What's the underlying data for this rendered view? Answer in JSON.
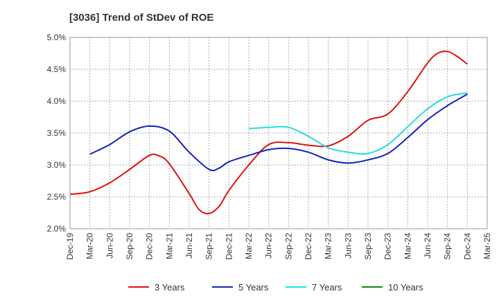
{
  "chart_data": {
    "type": "line",
    "title": "[3036]  Trend of StDev of ROE",
    "xlabel": "",
    "ylabel": "",
    "ylim": [
      2.0,
      5.0
    ],
    "y_ticks": [
      "2.0%",
      "2.5%",
      "3.0%",
      "3.5%",
      "4.0%",
      "4.5%",
      "5.0%"
    ],
    "y_tick_values": [
      2.0,
      2.5,
      3.0,
      3.5,
      4.0,
      4.5,
      5.0
    ],
    "x_ticks": [
      "Dec-19",
      "Mar-20",
      "Jun-20",
      "Sep-20",
      "Dec-20",
      "Mar-21",
      "Jun-21",
      "Sep-21",
      "Dec-21",
      "Mar-22",
      "Jun-22",
      "Sep-22",
      "Dec-22",
      "Mar-23",
      "Jun-23",
      "Sep-23",
      "Dec-23",
      "Mar-24",
      "Jun-24",
      "Sep-24",
      "Dec-24",
      "Mar-25"
    ],
    "grid": true,
    "legend_position": "bottom",
    "series": [
      {
        "name": "3 Years",
        "color": "#dd1111",
        "points": [
          [
            0,
            2.54
          ],
          [
            1,
            2.58
          ],
          [
            2,
            2.72
          ],
          [
            3,
            2.93
          ],
          [
            4,
            3.15
          ],
          [
            4.5,
            3.14
          ],
          [
            5,
            3.02
          ],
          [
            6,
            2.55
          ],
          [
            6.5,
            2.3
          ],
          [
            7,
            2.24
          ],
          [
            7.5,
            2.35
          ],
          [
            8,
            2.6
          ],
          [
            9,
            3.0
          ],
          [
            10,
            3.32
          ],
          [
            11,
            3.35
          ],
          [
            12,
            3.31
          ],
          [
            13,
            3.3
          ],
          [
            14,
            3.45
          ],
          [
            15,
            3.7
          ],
          [
            16,
            3.8
          ],
          [
            17,
            4.15
          ],
          [
            18,
            4.6
          ],
          [
            18.5,
            4.75
          ],
          [
            19,
            4.78
          ],
          [
            19.5,
            4.7
          ],
          [
            20,
            4.58
          ]
        ]
      },
      {
        "name": "5 Years",
        "color": "#1122bb",
        "points": [
          [
            1,
            3.17
          ],
          [
            2,
            3.32
          ],
          [
            3,
            3.52
          ],
          [
            4,
            3.61
          ],
          [
            5,
            3.53
          ],
          [
            6,
            3.2
          ],
          [
            7,
            2.93
          ],
          [
            7.5,
            2.95
          ],
          [
            8,
            3.05
          ],
          [
            9,
            3.15
          ],
          [
            10,
            3.24
          ],
          [
            11,
            3.26
          ],
          [
            12,
            3.2
          ],
          [
            13,
            3.08
          ],
          [
            14,
            3.03
          ],
          [
            15,
            3.08
          ],
          [
            16,
            3.18
          ],
          [
            17,
            3.43
          ],
          [
            18,
            3.71
          ],
          [
            19,
            3.93
          ],
          [
            20,
            4.11
          ]
        ]
      },
      {
        "name": "7 Years",
        "color": "#22dddd",
        "points": [
          [
            9,
            3.57
          ],
          [
            10,
            3.59
          ],
          [
            11,
            3.59
          ],
          [
            12,
            3.45
          ],
          [
            13,
            3.27
          ],
          [
            14,
            3.2
          ],
          [
            15,
            3.18
          ],
          [
            16,
            3.32
          ],
          [
            17,
            3.6
          ],
          [
            18,
            3.88
          ],
          [
            19,
            4.07
          ],
          [
            20,
            4.13
          ]
        ]
      },
      {
        "name": "10 Years",
        "color": "#118811",
        "points": []
      }
    ]
  }
}
